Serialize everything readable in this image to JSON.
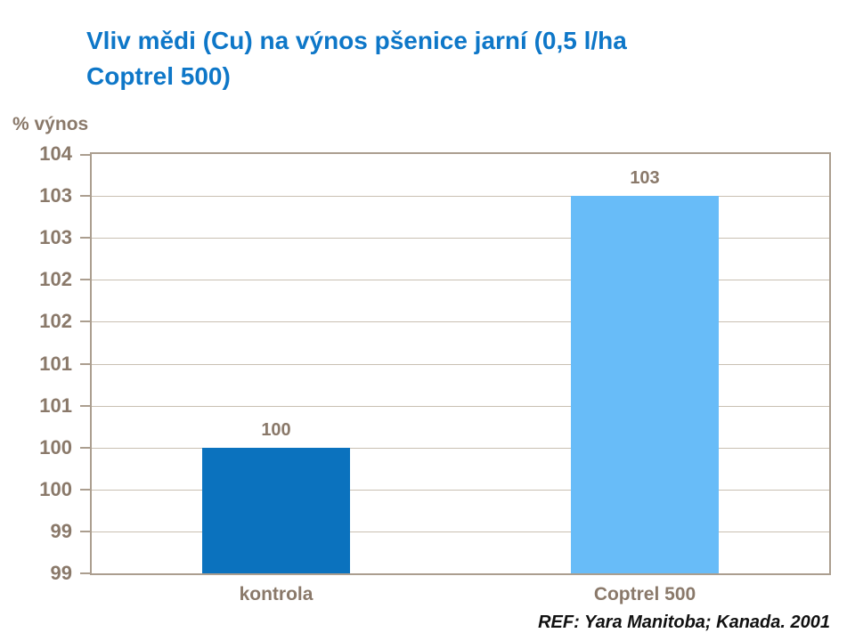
{
  "page": {
    "title_lines": [
      "Vliv mědi (Cu) na výnos pšenice jarní (0,5 l/ha",
      "Coptrel 500)"
    ],
    "footer_ref": "REF: Yara Manitoba; Kanada. 2001"
  },
  "chart_data": {
    "type": "bar",
    "title": "Vliv mědi (Cu) na výnos pšenice jarní (0,5 l/ha Coptrel 500)",
    "ylabel": "% výnos",
    "xlabel": "",
    "categories": [
      "kontrola",
      "Coptrel 500"
    ],
    "values": [
      100,
      103
    ],
    "data_labels": [
      "100",
      "103"
    ],
    "ylim": [
      98.5,
      103.5
    ],
    "ytick_step": 0.5,
    "ytick_labels_top_to_bottom": [
      "104",
      "103",
      "103",
      "102",
      "102",
      "101",
      "101",
      "100",
      "100",
      "99",
      "99"
    ],
    "grid": true,
    "legend_position": "none",
    "bar_colors": [
      "#0b72be",
      "#68bcf8"
    ],
    "source_note": "REF: Yara Manitoba; Kanada. 2001"
  },
  "colors": {
    "title_blue": "#0e77c8",
    "axis_text_brown": "#8a796a",
    "gridline_tan": "#c9c0b2",
    "plot_border_tan": "#ab9e8f",
    "bar_kontrola": "#0b72be",
    "bar_coptrel_500": "#68bcf8",
    "footer_black": "#111111"
  }
}
